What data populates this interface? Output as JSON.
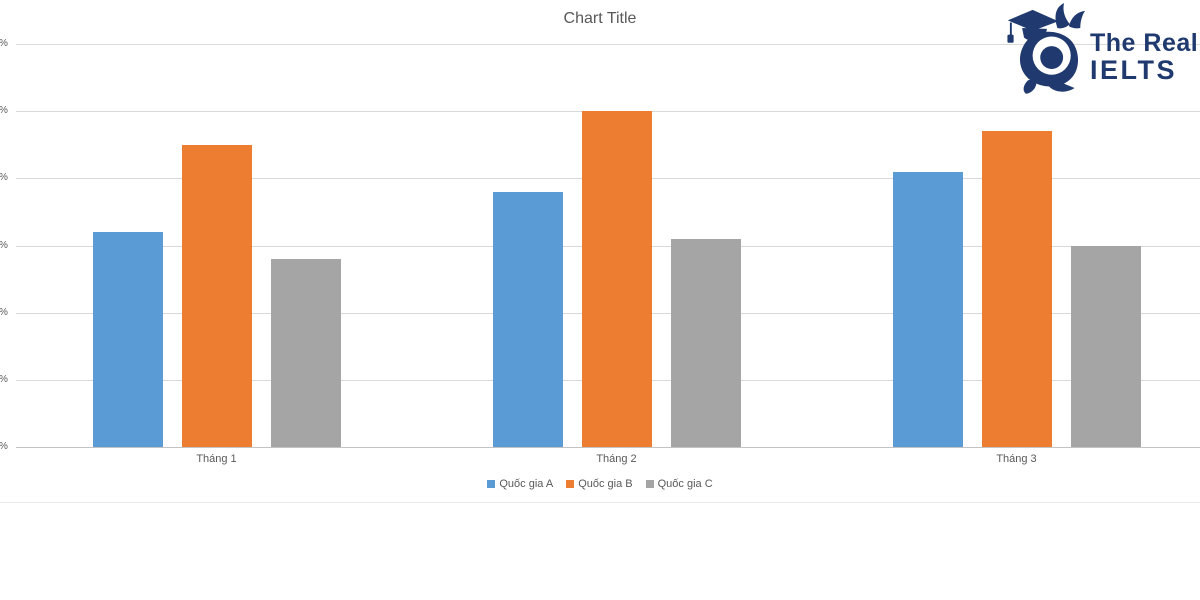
{
  "chart_data": {
    "type": "bar",
    "title": "Chart Title",
    "categories": [
      "Tháng 1",
      "Tháng 2",
      "Tháng 3"
    ],
    "series": [
      {
        "name": "Quốc gia A",
        "color": "#5B9BD5",
        "values": [
          32,
          38,
          41
        ]
      },
      {
        "name": "Quốc gia B",
        "color": "#ED7D31",
        "values": [
          45,
          50,
          47
        ]
      },
      {
        "name": "Quốc gia C",
        "color": "#A5A5A5",
        "values": [
          28,
          31,
          30
        ]
      }
    ],
    "unit": "%",
    "ylim": [
      0,
      60
    ],
    "y_tick_step": 10,
    "y_tick_label_visible_text": "%",
    "grid": true,
    "legend_position": "bottom",
    "xlabel": "",
    "ylabel": ""
  },
  "logo": {
    "line1": "The Real",
    "line2": "IELTS",
    "color": "#203A6F",
    "mascot": "snail-graduate-mascot"
  },
  "colors": {
    "title_text": "#595959",
    "axis_text": "#595959",
    "gridline": "#D9D9D9",
    "axis_line": "#C3C3C3",
    "background": "#FFFFFF"
  }
}
